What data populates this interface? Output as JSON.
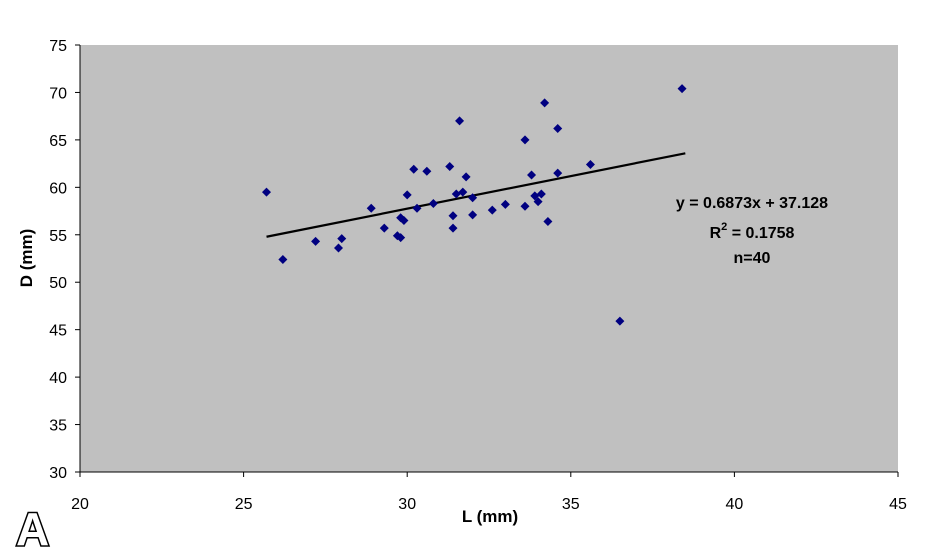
{
  "panel_label": "A",
  "chart_data": {
    "type": "scatter",
    "title": "",
    "xlabel": "L (mm)",
    "ylabel": "D (mm)",
    "xlim": [
      20,
      45
    ],
    "ylim": [
      30,
      75
    ],
    "xticks": [
      20,
      25,
      30,
      35,
      40,
      45
    ],
    "yticks": [
      30,
      35,
      40,
      45,
      50,
      55,
      60,
      65,
      70,
      75
    ],
    "grid": false,
    "background_color": "#c0c0c0",
    "marker_color": "#000080",
    "marker": "diamond",
    "trendline": {
      "slope": 0.6873,
      "intercept": 37.128,
      "x_range": [
        25.7,
        38.5
      ],
      "color": "#000000"
    },
    "annotation": {
      "equation": "y = 0.6873x + 37.128",
      "r2_prefix": "R",
      "r2_sup": "2",
      "r2_value": " = 0.1758",
      "n": "n=40"
    },
    "points": [
      [
        25.7,
        59.5
      ],
      [
        26.2,
        52.4
      ],
      [
        27.2,
        54.3
      ],
      [
        27.9,
        53.6
      ],
      [
        28.0,
        54.6
      ],
      [
        28.9,
        57.8
      ],
      [
        29.3,
        55.7
      ],
      [
        29.7,
        54.9
      ],
      [
        29.8,
        54.7
      ],
      [
        29.8,
        56.8
      ],
      [
        29.9,
        56.5
      ],
      [
        30.0,
        59.2
      ],
      [
        30.2,
        61.9
      ],
      [
        30.3,
        57.8
      ],
      [
        30.6,
        61.7
      ],
      [
        30.8,
        58.3
      ],
      [
        31.3,
        62.2
      ],
      [
        31.4,
        55.7
      ],
      [
        31.4,
        57.0
      ],
      [
        31.5,
        59.3
      ],
      [
        31.6,
        67.0
      ],
      [
        31.7,
        59.5
      ],
      [
        31.8,
        61.1
      ],
      [
        32.0,
        57.1
      ],
      [
        32.0,
        58.9
      ],
      [
        32.6,
        57.6
      ],
      [
        33.0,
        58.2
      ],
      [
        33.6,
        58.0
      ],
      [
        33.6,
        65.0
      ],
      [
        33.8,
        61.3
      ],
      [
        33.9,
        59.1
      ],
      [
        34.0,
        58.5
      ],
      [
        34.1,
        59.3
      ],
      [
        34.2,
        68.9
      ],
      [
        34.3,
        56.4
      ],
      [
        34.6,
        61.5
      ],
      [
        34.6,
        66.2
      ],
      [
        35.6,
        62.4
      ],
      [
        36.5,
        45.9
      ],
      [
        38.4,
        70.4
      ]
    ]
  }
}
